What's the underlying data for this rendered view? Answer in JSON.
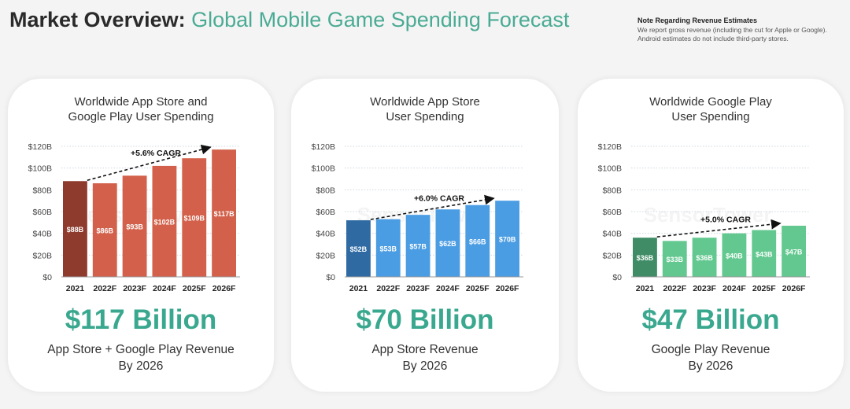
{
  "header": {
    "title_bold": "Market Overview:",
    "title_sub": "Global Mobile Game Spending Forecast"
  },
  "note": {
    "heading": "Note Regarding Revenue Estimates",
    "line1": "We report gross revenue (including the cut for Apple or Google).",
    "line2": "Android estimates do not include third-party stores."
  },
  "watermark": "SensorTower",
  "cards": [
    {
      "title1": "Worldwide App Store and",
      "title2": "Google Play User Spending",
      "big": "$117 Billion",
      "cap1": "App Store + Google Play Revenue",
      "cap2": "By 2026"
    },
    {
      "title1": "Worldwide App Store",
      "title2": "User Spending",
      "big": "$70 Billion",
      "cap1": "App Store Revenue",
      "cap2": "By 2026"
    },
    {
      "title1": "Worldwide Google Play",
      "title2": "User Spending",
      "big": "$47 Billion",
      "cap1": "Google Play Revenue",
      "cap2": "By 2026"
    }
  ],
  "chart_data": [
    {
      "type": "bar",
      "title": "Worldwide App Store and Google Play User Spending",
      "categories": [
        "2021",
        "2022F",
        "2023F",
        "2024F",
        "2025F",
        "2026F"
      ],
      "values": [
        88,
        86,
        93,
        102,
        109,
        117
      ],
      "data_labels": [
        "$88B",
        "$86B",
        "$93B",
        "$102B",
        "$109B",
        "$117B"
      ],
      "ylim": [
        0,
        120
      ],
      "yticks": [
        "$0",
        "$20B",
        "$40B",
        "$60B",
        "$80B",
        "$100B",
        "$120B"
      ],
      "annotation": "+5.6% CAGR",
      "grid": true,
      "colors": {
        "first": "#8e3b2d",
        "rest": "#d2604a"
      }
    },
    {
      "type": "bar",
      "title": "Worldwide App Store User Spending",
      "categories": [
        "2021",
        "2022F",
        "2023F",
        "2024F",
        "2025F",
        "2026F"
      ],
      "values": [
        52,
        53,
        57,
        62,
        66,
        70
      ],
      "data_labels": [
        "$52B",
        "$53B",
        "$57B",
        "$62B",
        "$66B",
        "$70B"
      ],
      "ylim": [
        0,
        120
      ],
      "yticks": [
        "$0",
        "$20B",
        "$40B",
        "$60B",
        "$80B",
        "$100B",
        "$120B"
      ],
      "annotation": "+6.0% CAGR",
      "grid": true,
      "colors": {
        "first": "#2f6aa3",
        "rest": "#4b9de3"
      }
    },
    {
      "type": "bar",
      "title": "Worldwide Google Play User Spending",
      "categories": [
        "2021",
        "2022F",
        "2023F",
        "2024F",
        "2025F",
        "2026F"
      ],
      "values": [
        36,
        33,
        36,
        40,
        43,
        47
      ],
      "data_labels": [
        "$36B",
        "$33B",
        "$36B",
        "$40B",
        "$43B",
        "$47B"
      ],
      "ylim": [
        0,
        120
      ],
      "yticks": [
        "$0",
        "$20B",
        "$40B",
        "$60B",
        "$80B",
        "$100B",
        "$120B"
      ],
      "annotation": "+5.0% CAGR",
      "grid": true,
      "colors": {
        "first": "#3f8c66",
        "rest": "#62c88f"
      }
    }
  ]
}
